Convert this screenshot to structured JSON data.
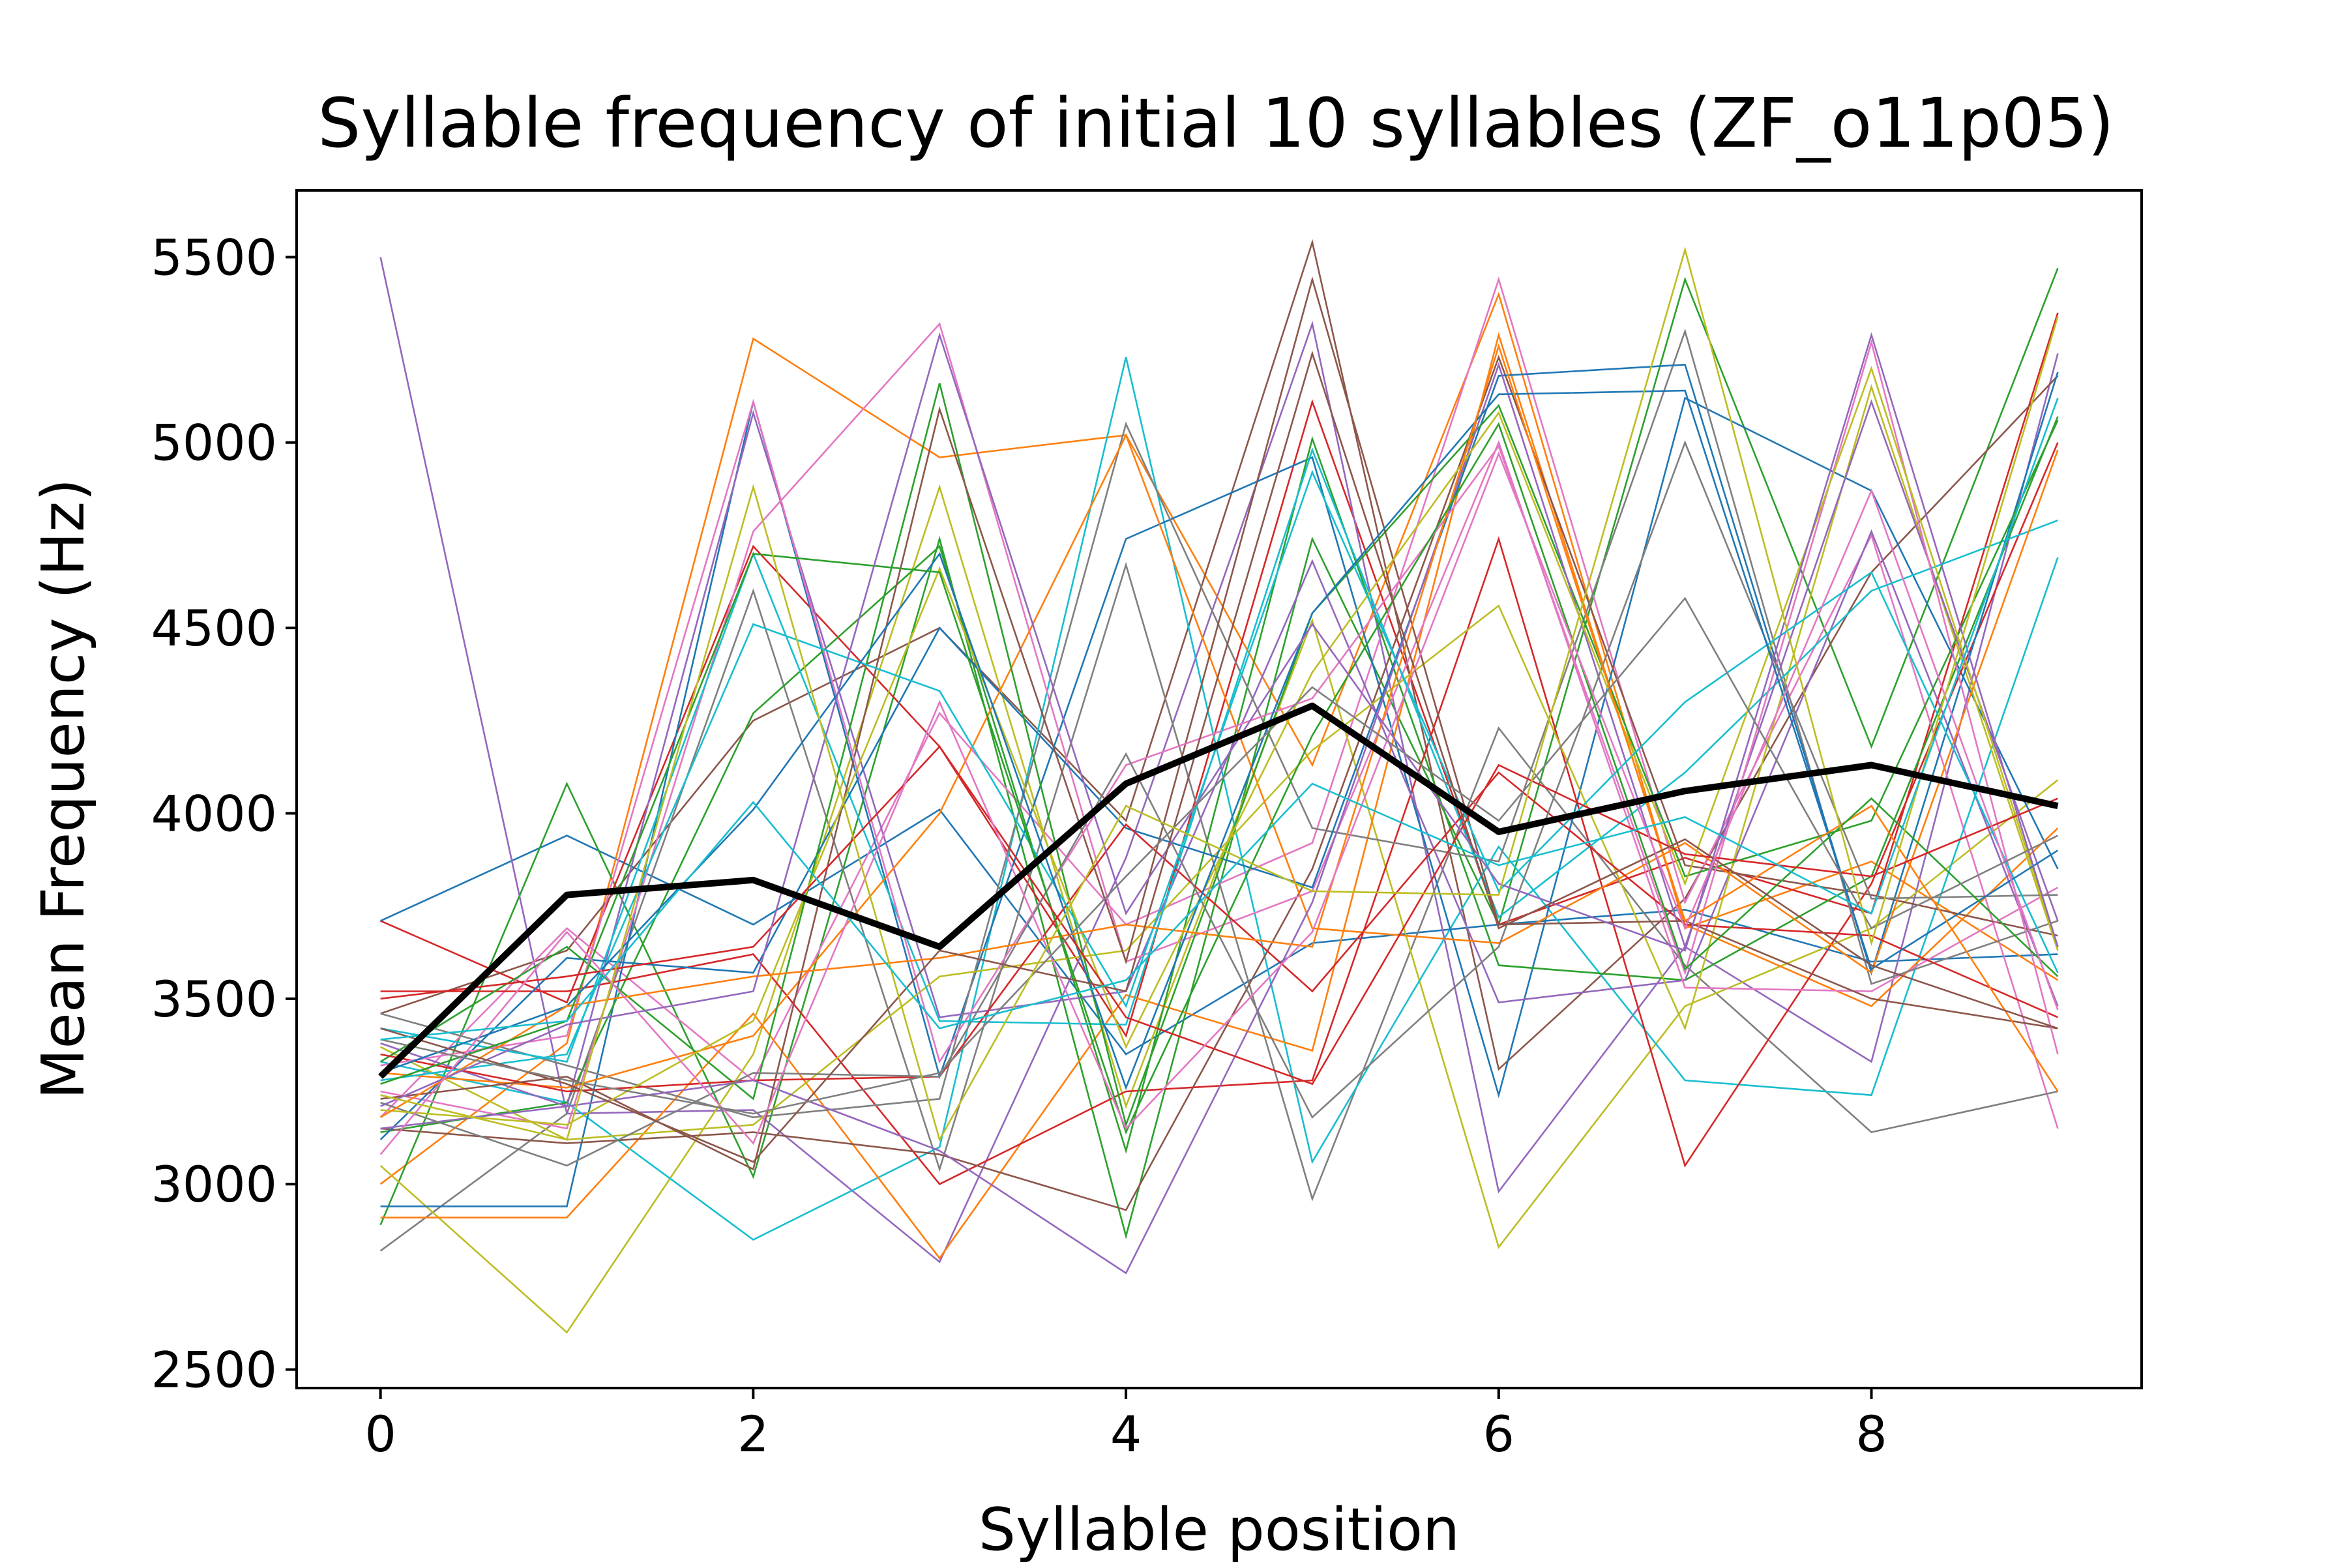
{
  "chart_data": {
    "type": "line",
    "title": "Syllable frequency of initial 10 syllables (ZF_o11p05)",
    "xlabel": "Syllable position",
    "ylabel": "Mean Frequency (Hz)",
    "xlim": [
      -0.45,
      9.45
    ],
    "ylim": [
      2450,
      5680
    ],
    "xticks": [
      0,
      2,
      4,
      6,
      8
    ],
    "yticks": [
      2500,
      3000,
      3500,
      4000,
      4500,
      5000,
      5500
    ],
    "x": [
      0,
      1,
      2,
      3,
      4,
      5,
      6,
      7,
      8,
      9
    ],
    "grid": false,
    "legend": "none",
    "palette": [
      "#1f77b4",
      "#ff7f0e",
      "#2ca02c",
      "#d62728",
      "#9467bd",
      "#8c564b",
      "#e377c2",
      "#7f7f7f",
      "#bcbd22",
      "#17becf"
    ],
    "series": [
      {
        "values": [
          3710,
          3940,
          3700,
          4010,
          3350,
          3650,
          3700,
          3740,
          3600,
          3620
        ]
      },
      {
        "values": [
          3000,
          3380,
          5280,
          4960,
          5020,
          4130,
          5400,
          3690,
          3870,
          3550
        ]
      },
      {
        "values": [
          2890,
          4080,
          3020,
          4740,
          2860,
          4740,
          3700,
          5440,
          4180,
          5470
        ]
      },
      {
        "values": [
          3710,
          3490,
          4720,
          4180,
          3400,
          5110,
          3700,
          3880,
          3730,
          5350
        ]
      },
      {
        "values": [
          5500,
          3190,
          3200,
          2790,
          3880,
          5320,
          2980,
          3640,
          3330,
          5240
        ]
      },
      {
        "values": [
          3460,
          3630,
          4250,
          4500,
          3980,
          5540,
          3310,
          3770,
          4650,
          5180
        ]
      },
      {
        "values": [
          3180,
          3690,
          3280,
          4270,
          3700,
          3920,
          5440,
          3760,
          4750,
          3150
        ]
      },
      {
        "values": [
          2820,
          3190,
          4600,
          3040,
          4670,
          2960,
          4230,
          3590,
          3140,
          3250
        ]
      },
      {
        "values": [
          3050,
          2600,
          3350,
          4880,
          3210,
          4520,
          2830,
          3480,
          3690,
          4090
        ]
      },
      {
        "values": [
          3330,
          3220,
          2850,
          3100,
          5230,
          3060,
          3910,
          3280,
          3240,
          4690
        ]
      },
      {
        "values": [
          2940,
          2940,
          5110,
          3290,
          4740,
          4960,
          3240,
          5120,
          4870,
          3850
        ]
      },
      {
        "values": [
          2910,
          2910,
          3460,
          2800,
          3510,
          3360,
          5290,
          3700,
          3480,
          3960
        ]
      },
      {
        "values": [
          3140,
          3220,
          4270,
          4720,
          3090,
          5010,
          3590,
          3550,
          3830,
          5070
        ]
      },
      {
        "values": [
          3520,
          3520,
          3620,
          3000,
          3250,
          3280,
          4740,
          3050,
          3810,
          5000
        ]
      },
      {
        "values": [
          3380,
          3210,
          5080,
          3450,
          3520,
          4680,
          3490,
          3550,
          4760,
          3480
        ]
      },
      {
        "values": [
          3150,
          3110,
          3140,
          3080,
          2930,
          3850,
          5230,
          3860,
          3780,
          3670
        ]
      },
      {
        "values": [
          3250,
          3150,
          4760,
          5320,
          3600,
          3790,
          5000,
          3530,
          3520,
          3800
        ]
      },
      {
        "values": [
          3460,
          3320,
          3180,
          3230,
          5050,
          3960,
          3870,
          5300,
          3540,
          3710
        ]
      },
      {
        "values": [
          3370,
          3120,
          3160,
          3560,
          3630,
          4170,
          4560,
          3420,
          5150,
          3630
        ]
      },
      {
        "values": [
          3420,
          3330,
          4700,
          3440,
          3430,
          4980,
          3720,
          4110,
          4600,
          4790
        ]
      },
      {
        "values": [
          3120,
          3610,
          3570,
          4500,
          3960,
          3800,
          5180,
          5210,
          3570,
          5190
        ]
      },
      {
        "values": [
          3300,
          3260,
          3400,
          4000,
          5020,
          3690,
          3650,
          3920,
          3570,
          4980
        ]
      },
      {
        "values": [
          3330,
          3640,
          3230,
          5160,
          3160,
          4540,
          5100,
          3830,
          3980,
          5060
        ]
      },
      {
        "values": [
          3350,
          3250,
          3280,
          3290,
          3970,
          3520,
          4110,
          3700,
          3670,
          3450
        ]
      },
      {
        "values": [
          3150,
          3210,
          3280,
          3090,
          2760,
          3760,
          5210,
          3640,
          5110,
          3710
        ]
      },
      {
        "values": [
          3230,
          3290,
          3040,
          5090,
          3600,
          5440,
          3700,
          3710,
          3500,
          3420
        ]
      },
      {
        "values": [
          3320,
          3400,
          5110,
          3330,
          4130,
          4310,
          4990,
          3570,
          5270,
          3350
        ]
      },
      {
        "values": [
          3220,
          3050,
          3300,
          3290,
          4160,
          3180,
          3640,
          5000,
          3770,
          3780
        ]
      },
      {
        "values": [
          3200,
          3160,
          3440,
          4660,
          3370,
          4380,
          5080,
          3810,
          5200,
          3640
        ]
      },
      {
        "values": [
          3280,
          3350,
          4510,
          4330,
          3480,
          4920,
          3790,
          4300,
          4650,
          3570
        ]
      },
      {
        "values": [
          3300,
          3480,
          4010,
          4700,
          3260,
          4540,
          5130,
          5140,
          3580,
          3900
        ]
      },
      {
        "values": [
          3180,
          3480,
          3560,
          3610,
          3700,
          3640,
          5260,
          3710,
          4020,
          3250
        ]
      },
      {
        "values": [
          3270,
          3440,
          4700,
          4650,
          3140,
          4210,
          5050,
          3580,
          4040,
          3560
        ]
      },
      {
        "values": [
          3500,
          3560,
          3640,
          4180,
          3450,
          3270,
          4130,
          3890,
          3830,
          4040
        ]
      },
      {
        "values": [
          3210,
          3430,
          3520,
          5290,
          3730,
          4510,
          3810,
          3630,
          5290,
          3640
        ]
      },
      {
        "values": [
          3420,
          3270,
          3060,
          3630,
          3520,
          5240,
          3690,
          3930,
          3590,
          3420
        ]
      },
      {
        "values": [
          3080,
          3680,
          3110,
          4300,
          3150,
          3680,
          4970,
          3690,
          4870,
          3470
        ]
      },
      {
        "values": [
          3390,
          3280,
          3190,
          3300,
          3830,
          4340,
          3980,
          4580,
          3690,
          3940
        ]
      },
      {
        "values": [
          3240,
          3120,
          4880,
          3120,
          4020,
          3790,
          3780,
          5520,
          3650,
          5340
        ]
      },
      {
        "values": [
          3390,
          3440,
          4030,
          3420,
          3550,
          4080,
          3860,
          3990,
          3730,
          5120
        ]
      }
    ],
    "mean": {
      "values": [
        3290,
        3780,
        3820,
        3640,
        4080,
        4290,
        3950,
        4060,
        4130,
        4020
      ],
      "color": "#000000"
    }
  }
}
